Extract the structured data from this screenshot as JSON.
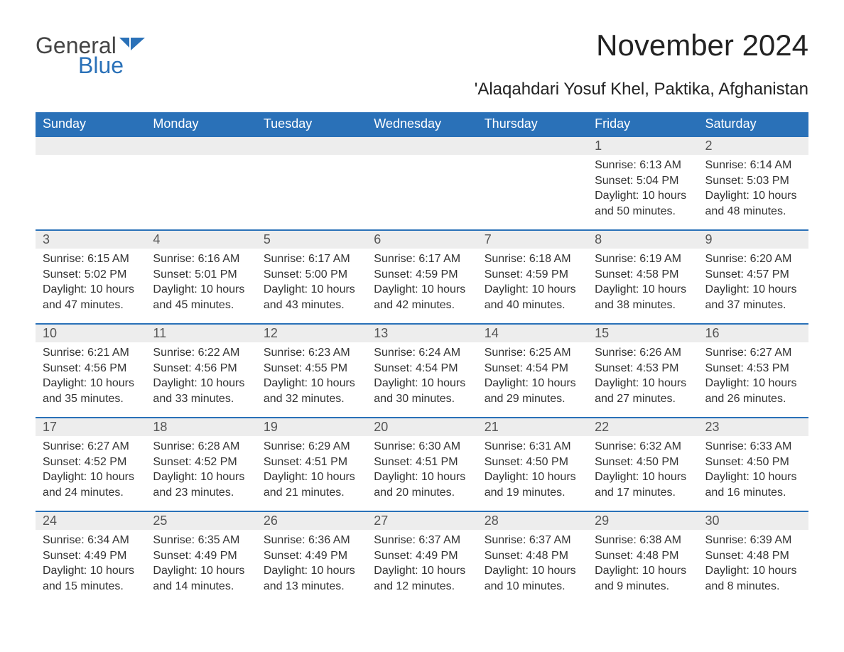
{
  "logo": {
    "general": "General",
    "blue": "Blue"
  },
  "title": "November 2024",
  "subtitle": "'Alaqahdari Yosuf Khel, Paktika, Afghanistan",
  "colors": {
    "header_bg": "#2a71b8",
    "header_text": "#ffffff",
    "daynum_bg": "#ededed",
    "row_border": "#2a71b8",
    "body_text": "#333333",
    "page_bg": "#ffffff"
  },
  "calendar": {
    "columns": [
      "Sunday",
      "Monday",
      "Tuesday",
      "Wednesday",
      "Thursday",
      "Friday",
      "Saturday"
    ],
    "first_weekday_index": 5,
    "days": [
      {
        "n": 1,
        "sunrise": "6:13 AM",
        "sunset": "5:04 PM",
        "daylight": "10 hours and 50 minutes."
      },
      {
        "n": 2,
        "sunrise": "6:14 AM",
        "sunset": "5:03 PM",
        "daylight": "10 hours and 48 minutes."
      },
      {
        "n": 3,
        "sunrise": "6:15 AM",
        "sunset": "5:02 PM",
        "daylight": "10 hours and 47 minutes."
      },
      {
        "n": 4,
        "sunrise": "6:16 AM",
        "sunset": "5:01 PM",
        "daylight": "10 hours and 45 minutes."
      },
      {
        "n": 5,
        "sunrise": "6:17 AM",
        "sunset": "5:00 PM",
        "daylight": "10 hours and 43 minutes."
      },
      {
        "n": 6,
        "sunrise": "6:17 AM",
        "sunset": "4:59 PM",
        "daylight": "10 hours and 42 minutes."
      },
      {
        "n": 7,
        "sunrise": "6:18 AM",
        "sunset": "4:59 PM",
        "daylight": "10 hours and 40 minutes."
      },
      {
        "n": 8,
        "sunrise": "6:19 AM",
        "sunset": "4:58 PM",
        "daylight": "10 hours and 38 minutes."
      },
      {
        "n": 9,
        "sunrise": "6:20 AM",
        "sunset": "4:57 PM",
        "daylight": "10 hours and 37 minutes."
      },
      {
        "n": 10,
        "sunrise": "6:21 AM",
        "sunset": "4:56 PM",
        "daylight": "10 hours and 35 minutes."
      },
      {
        "n": 11,
        "sunrise": "6:22 AM",
        "sunset": "4:56 PM",
        "daylight": "10 hours and 33 minutes."
      },
      {
        "n": 12,
        "sunrise": "6:23 AM",
        "sunset": "4:55 PM",
        "daylight": "10 hours and 32 minutes."
      },
      {
        "n": 13,
        "sunrise": "6:24 AM",
        "sunset": "4:54 PM",
        "daylight": "10 hours and 30 minutes."
      },
      {
        "n": 14,
        "sunrise": "6:25 AM",
        "sunset": "4:54 PM",
        "daylight": "10 hours and 29 minutes."
      },
      {
        "n": 15,
        "sunrise": "6:26 AM",
        "sunset": "4:53 PM",
        "daylight": "10 hours and 27 minutes."
      },
      {
        "n": 16,
        "sunrise": "6:27 AM",
        "sunset": "4:53 PM",
        "daylight": "10 hours and 26 minutes."
      },
      {
        "n": 17,
        "sunrise": "6:27 AM",
        "sunset": "4:52 PM",
        "daylight": "10 hours and 24 minutes."
      },
      {
        "n": 18,
        "sunrise": "6:28 AM",
        "sunset": "4:52 PM",
        "daylight": "10 hours and 23 minutes."
      },
      {
        "n": 19,
        "sunrise": "6:29 AM",
        "sunset": "4:51 PM",
        "daylight": "10 hours and 21 minutes."
      },
      {
        "n": 20,
        "sunrise": "6:30 AM",
        "sunset": "4:51 PM",
        "daylight": "10 hours and 20 minutes."
      },
      {
        "n": 21,
        "sunrise": "6:31 AM",
        "sunset": "4:50 PM",
        "daylight": "10 hours and 19 minutes."
      },
      {
        "n": 22,
        "sunrise": "6:32 AM",
        "sunset": "4:50 PM",
        "daylight": "10 hours and 17 minutes."
      },
      {
        "n": 23,
        "sunrise": "6:33 AM",
        "sunset": "4:50 PM",
        "daylight": "10 hours and 16 minutes."
      },
      {
        "n": 24,
        "sunrise": "6:34 AM",
        "sunset": "4:49 PM",
        "daylight": "10 hours and 15 minutes."
      },
      {
        "n": 25,
        "sunrise": "6:35 AM",
        "sunset": "4:49 PM",
        "daylight": "10 hours and 14 minutes."
      },
      {
        "n": 26,
        "sunrise": "6:36 AM",
        "sunset": "4:49 PM",
        "daylight": "10 hours and 13 minutes."
      },
      {
        "n": 27,
        "sunrise": "6:37 AM",
        "sunset": "4:49 PM",
        "daylight": "10 hours and 12 minutes."
      },
      {
        "n": 28,
        "sunrise": "6:37 AM",
        "sunset": "4:48 PM",
        "daylight": "10 hours and 10 minutes."
      },
      {
        "n": 29,
        "sunrise": "6:38 AM",
        "sunset": "4:48 PM",
        "daylight": "10 hours and 9 minutes."
      },
      {
        "n": 30,
        "sunrise": "6:39 AM",
        "sunset": "4:48 PM",
        "daylight": "10 hours and 8 minutes."
      }
    ],
    "labels": {
      "sunrise": "Sunrise:",
      "sunset": "Sunset:",
      "daylight": "Daylight:"
    }
  }
}
